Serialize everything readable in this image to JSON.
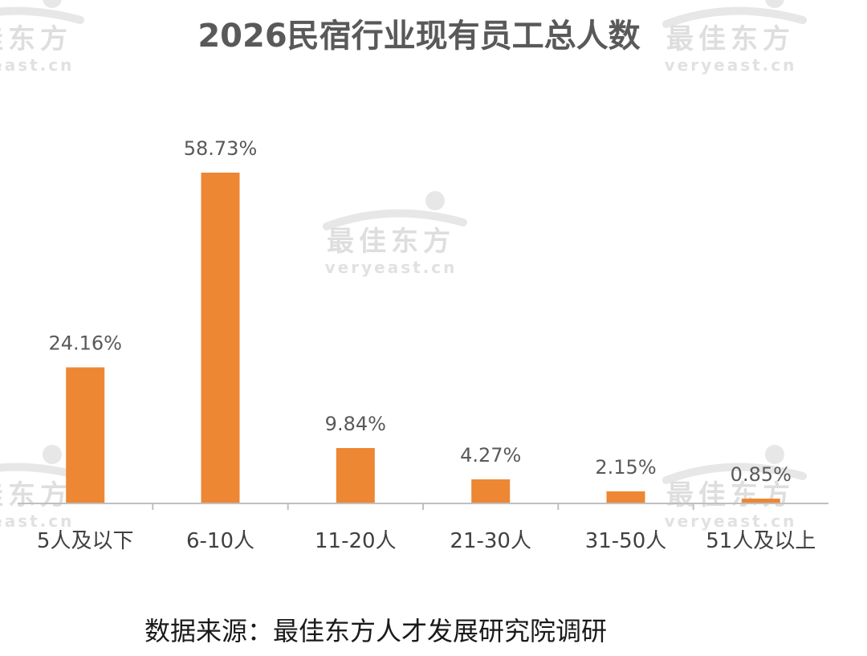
{
  "watermark": {
    "brand": "最佳东方",
    "domain": "veryeast.cn"
  },
  "source_note": "数据来源：最佳东方人才发展研究院调研",
  "colors": {
    "bar": "#ed8733",
    "axis": "#bfbfbf",
    "text": "#595959"
  },
  "chart_data": {
    "type": "bar",
    "title": "2026民宿行业现有员工总人数",
    "xlabel": "",
    "ylabel": "",
    "categories": [
      "5人及以下",
      "6-10人",
      "11-20人",
      "21-30人",
      "31-50人",
      "51人及以上"
    ],
    "values": [
      24.16,
      58.73,
      9.84,
      4.27,
      2.15,
      0.85
    ],
    "value_labels": [
      "24.16%",
      "58.73%",
      "9.84%",
      "4.27%",
      "2.15%",
      "0.85%"
    ],
    "unit": "%",
    "ylim": [
      0,
      60
    ],
    "grid": false,
    "legend": "none"
  }
}
